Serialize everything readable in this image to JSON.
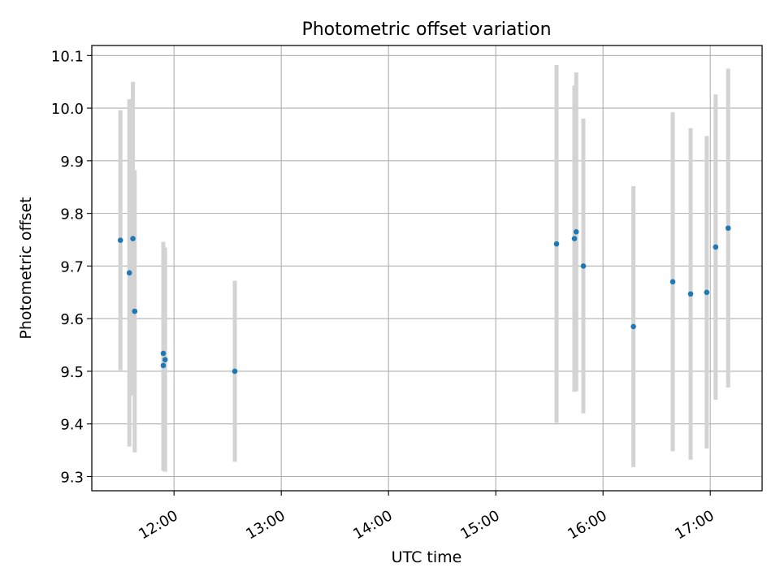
{
  "chart_data": {
    "type": "scatter",
    "title": "Photometric offset variation",
    "xlabel": "UTC time",
    "ylabel": "Photometric offset",
    "x_tick_labels": [
      "12:00",
      "13:00",
      "14:00",
      "15:00",
      "16:00",
      "17:00"
    ],
    "y_tick_labels": [
      "9.3",
      "9.4",
      "9.5",
      "9.6",
      "9.7",
      "9.8",
      "9.9",
      "10.0",
      "10.1"
    ],
    "xlim": [
      "11:14",
      "17:29"
    ],
    "ylim": [
      9.273,
      10.119
    ],
    "grid": true,
    "colors": {
      "points": "#1f77b4",
      "error_bars": "#d3d3d3",
      "grid": "#b0b0b0"
    },
    "series": [
      {
        "points": [
          {
            "x": "11:30",
            "y": 9.749,
            "err": 0.247
          },
          {
            "x": "11:35",
            "y": 9.687,
            "err": 0.33
          },
          {
            "x": "11:37",
            "y": 9.752,
            "err": 0.298
          },
          {
            "x": "11:38",
            "y": 9.614,
            "err": 0.268
          },
          {
            "x": "11:54",
            "y": 9.534,
            "err": 0.212
          },
          {
            "x": "11:55",
            "y": 9.522,
            "err": 0.213
          },
          {
            "x": "11:54",
            "y": 9.511,
            "err": 0.2
          },
          {
            "x": "12:34",
            "y": 9.5,
            "err": 0.172
          },
          {
            "x": "15:34",
            "y": 9.742,
            "err": 0.34
          },
          {
            "x": "15:44",
            "y": 9.752,
            "err": 0.291
          },
          {
            "x": "15:45",
            "y": 9.765,
            "err": 0.303
          },
          {
            "x": "15:49",
            "y": 9.7,
            "err": 0.28
          },
          {
            "x": "16:17",
            "y": 9.585,
            "err": 0.267
          },
          {
            "x": "16:39",
            "y": 9.67,
            "err": 0.322
          },
          {
            "x": "16:49",
            "y": 9.647,
            "err": 0.315
          },
          {
            "x": "16:58",
            "y": 9.65,
            "err": 0.297
          },
          {
            "x": "17:03",
            "y": 9.736,
            "err": 0.29
          },
          {
            "x": "17:10",
            "y": 9.772,
            "err": 0.303
          }
        ]
      }
    ]
  }
}
